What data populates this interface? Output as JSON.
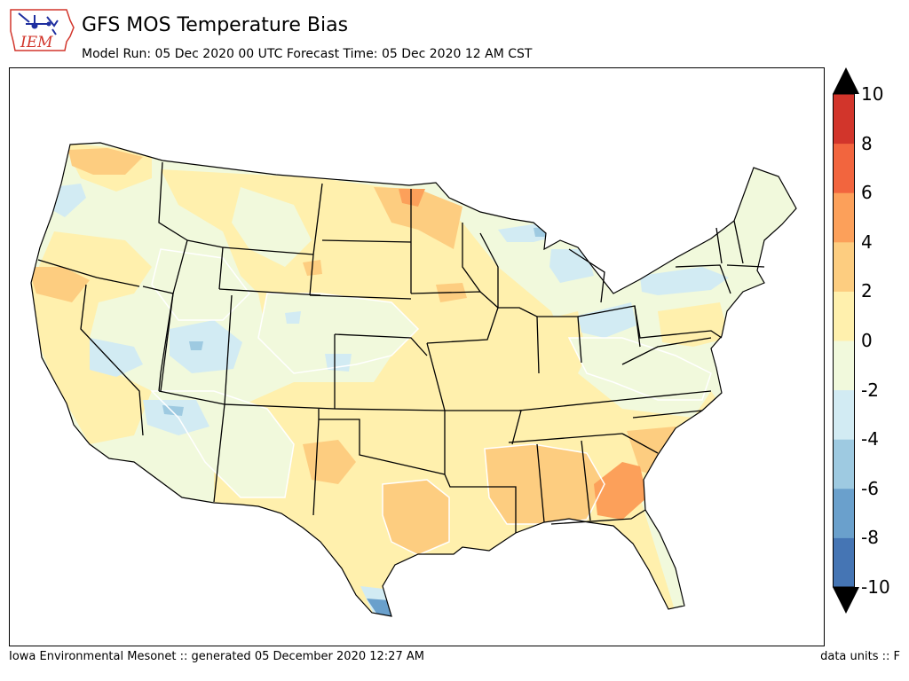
{
  "logo": {
    "text": "IEM"
  },
  "header": {
    "title": "GFS MOS Temperature Bias",
    "subtitle": "Model Run: 05 Dec 2020 00 UTC Forecast Time: 05 Dec 2020 12 AM CST"
  },
  "map": {
    "region": "contiguous-united-states",
    "layers": [
      "filled-contours",
      "state-boundaries"
    ]
  },
  "colorbar": {
    "tick_labels": [
      "10",
      "8",
      "6",
      "4",
      "2",
      "0",
      "-2",
      "-4",
      "-6",
      "-8",
      "-10"
    ],
    "levels": [
      -10,
      -8,
      -6,
      -4,
      -2,
      0,
      2,
      4,
      6,
      8,
      10
    ],
    "bin_colors": [
      "#4575b4",
      "#6aa0cc",
      "#9ecae1",
      "#d2ebf3",
      "#f1f9dc",
      "#fff0ad",
      "#fdcd80",
      "#fca05a",
      "#f2653e",
      "#d2352b"
    ],
    "extend_low_color": "#000000",
    "extend_high_color": "#000000"
  },
  "footer": {
    "left": "Iowa Environmental Mesonet :: generated 05 December 2020 12:27 AM",
    "right": "data units :: F"
  }
}
